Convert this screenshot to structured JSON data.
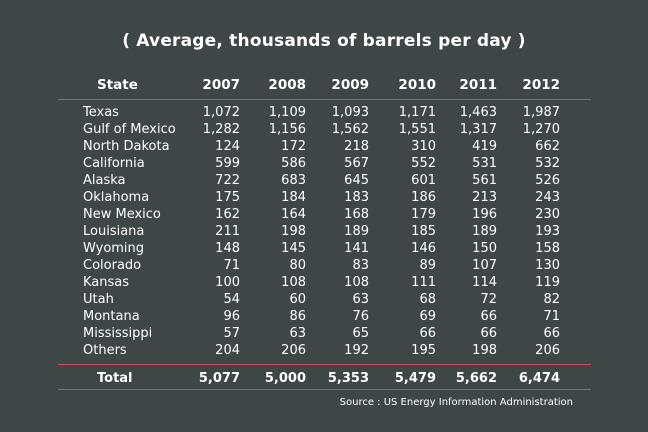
{
  "title": "( Average, thousands of barrels per day )",
  "source": "Source : US Energy Information Administration",
  "chart_data": {
    "type": "table",
    "columns": [
      "State",
      "2007",
      "2008",
      "2009",
      "2010",
      "2011",
      "2012"
    ],
    "rows": [
      {
        "label": "Texas",
        "values": [
          "1,072",
          "1,109",
          "1,093",
          "1,171",
          "1,463",
          "1,987"
        ]
      },
      {
        "label": "Gulf of Mexico",
        "values": [
          "1,282",
          "1,156",
          "1,562",
          "1,551",
          "1,317",
          "1,270"
        ]
      },
      {
        "label": "North Dakota",
        "values": [
          "124",
          "172",
          "218",
          "310",
          "419",
          "662"
        ]
      },
      {
        "label": "California",
        "values": [
          "599",
          "586",
          "567",
          "552",
          "531",
          "532"
        ]
      },
      {
        "label": "Alaska",
        "values": [
          "722",
          "683",
          "645",
          "601",
          "561",
          "526"
        ]
      },
      {
        "label": "Oklahoma",
        "values": [
          "175",
          "184",
          "183",
          "186",
          "213",
          "243"
        ]
      },
      {
        "label": "New Mexico",
        "values": [
          "162",
          "164",
          "168",
          "179",
          "196",
          "230"
        ]
      },
      {
        "label": "Louisiana",
        "values": [
          "211",
          "198",
          "189",
          "185",
          "189",
          "193"
        ]
      },
      {
        "label": "Wyoming",
        "values": [
          "148",
          "145",
          "141",
          "146",
          "150",
          "158"
        ]
      },
      {
        "label": "Colorado",
        "values": [
          "71",
          "80",
          "83",
          "89",
          "107",
          "130"
        ]
      },
      {
        "label": "Kansas",
        "values": [
          "100",
          "108",
          "108",
          "111",
          "114",
          "119"
        ]
      },
      {
        "label": "Utah",
        "values": [
          "54",
          "60",
          "63",
          "68",
          "72",
          "82"
        ]
      },
      {
        "label": "Montana",
        "values": [
          "96",
          "86",
          "76",
          "69",
          "66",
          "71"
        ]
      },
      {
        "label": "Mississippi",
        "values": [
          "57",
          "63",
          "65",
          "66",
          "66",
          "66"
        ]
      },
      {
        "label": "Others",
        "values": [
          "204",
          "206",
          "192",
          "195",
          "198",
          "206"
        ]
      }
    ],
    "total": {
      "label": "Total",
      "values": [
        "5,077",
        "5,000",
        "5,353",
        "5,479",
        "5,662",
        "6,474"
      ]
    }
  },
  "colors": {
    "background": "#3e4646",
    "text": "#ffffff",
    "rule": "#c9535c"
  }
}
